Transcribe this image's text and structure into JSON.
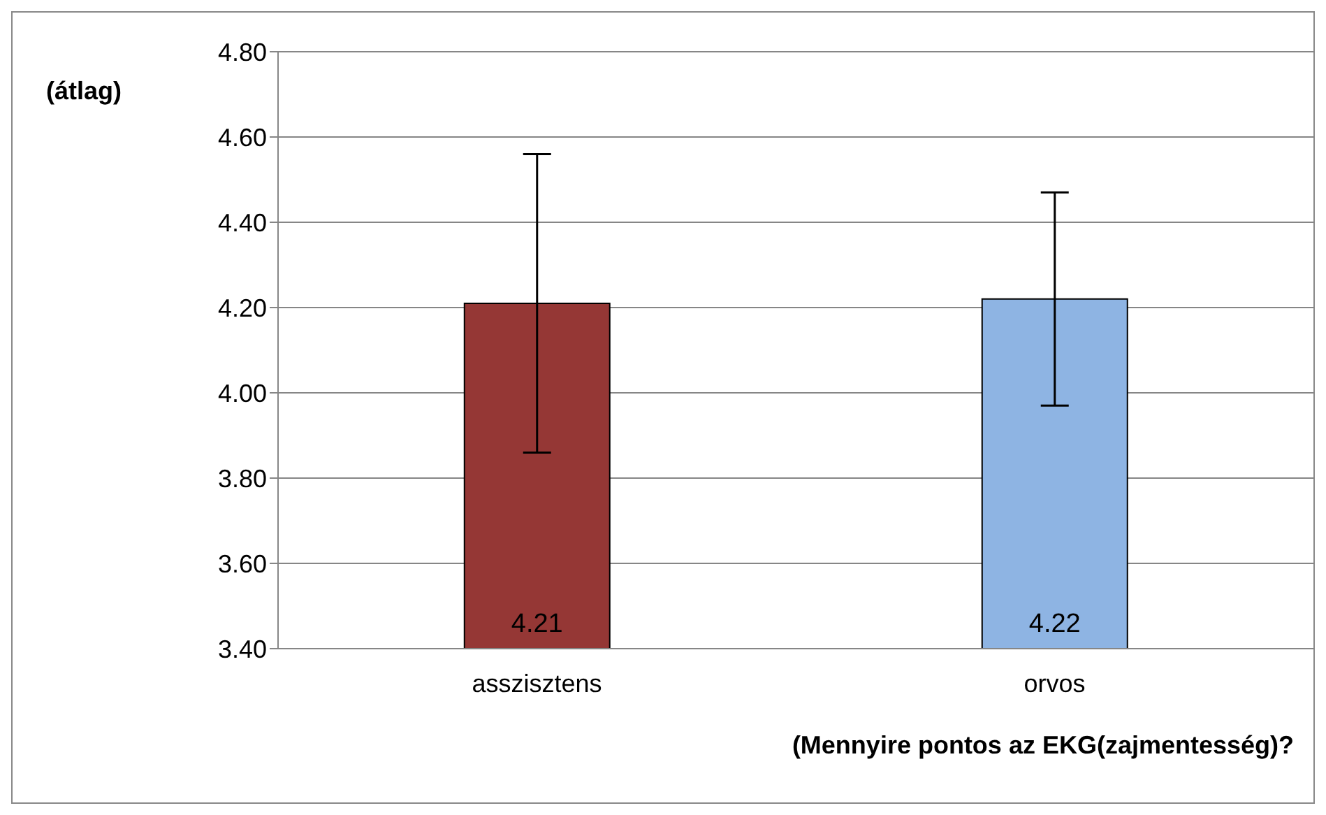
{
  "chart_data": {
    "type": "bar",
    "xlabel": "(Mennyire pontos az EKG(zajmentesség)?",
    "ylabel": "(átlag)",
    "categories": [
      "asszisztens",
      "orvos"
    ],
    "values": [
      4.21,
      4.22
    ],
    "colors": [
      "#953735",
      "#8eb4e3"
    ],
    "errors": [
      0.35,
      0.25
    ],
    "data_labels": true,
    "ylim": [
      3.4,
      4.8
    ],
    "yticks": [
      {
        "value": 3.4,
        "label": "3.40"
      },
      {
        "value": 3.6,
        "label": "3.60"
      },
      {
        "value": 3.8,
        "label": "3.80"
      },
      {
        "value": 4.0,
        "label": "4.00"
      },
      {
        "value": 4.2,
        "label": "4.20"
      },
      {
        "value": 4.4,
        "label": "4.40"
      },
      {
        "value": 4.6,
        "label": "4.60"
      },
      {
        "value": 4.8,
        "label": "4.80"
      }
    ],
    "grid": "y",
    "legend": false
  }
}
